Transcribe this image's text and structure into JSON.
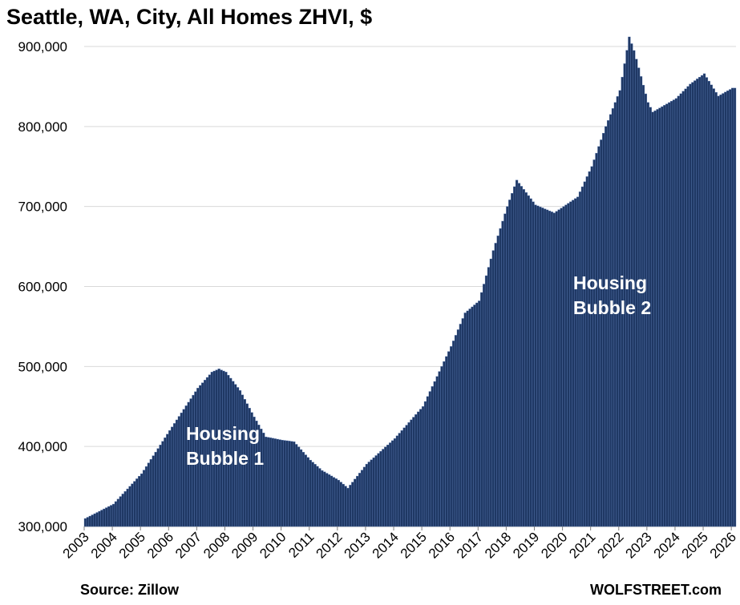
{
  "chart_data": {
    "type": "bar",
    "title": "Seattle, WA,  City, All Homes ZHVI, $",
    "xlabel": "",
    "ylabel": "",
    "ylim": [
      300000,
      915000
    ],
    "yticks": [
      300000,
      400000,
      500000,
      600000,
      700000,
      800000,
      900000
    ],
    "ytick_labels": [
      "300,000",
      "400,000",
      "500,000",
      "600,000",
      "700,000",
      "800,000",
      "900,000"
    ],
    "xticks": [
      "2003",
      "2004",
      "2005",
      "2006",
      "2007",
      "2008",
      "2009",
      "2010",
      "2011",
      "2012",
      "2013",
      "2014",
      "2015",
      "2016",
      "2017",
      "2018",
      "2019",
      "2020",
      "2021",
      "2022",
      "2023",
      "2024",
      "2025",
      "2026"
    ],
    "x_start": "2003-01",
    "frequency": "monthly",
    "grid": true,
    "bar_color": "#1f3864",
    "annotations": [
      {
        "text_lines": [
          "Housing",
          "Bubble 1"
        ]
      },
      {
        "text_lines": [
          "Housing",
          "Bubble 2"
        ]
      }
    ],
    "source": "Source: Zillow",
    "watermark": "WOLFSTREET.com",
    "anchors": [
      [
        "2003-01",
        310000
      ],
      [
        "2004-01",
        328000
      ],
      [
        "2005-01",
        366000
      ],
      [
        "2006-01",
        420000
      ],
      [
        "2007-01",
        473000
      ],
      [
        "2007-07",
        493000
      ],
      [
        "2007-10",
        497000
      ],
      [
        "2008-01",
        493000
      ],
      [
        "2008-07",
        470000
      ],
      [
        "2009-01",
        437000
      ],
      [
        "2009-06",
        412000
      ],
      [
        "2010-01",
        408000
      ],
      [
        "2010-06",
        406000
      ],
      [
        "2011-01",
        383000
      ],
      [
        "2011-06",
        370000
      ],
      [
        "2012-01",
        358000
      ],
      [
        "2012-05",
        348000
      ],
      [
        "2013-01",
        378000
      ],
      [
        "2014-01",
        410000
      ],
      [
        "2015-01",
        450000
      ],
      [
        "2016-01",
        525000
      ],
      [
        "2016-07",
        567000
      ],
      [
        "2017-01",
        582000
      ],
      [
        "2017-07",
        645000
      ],
      [
        "2018-01",
        700000
      ],
      [
        "2018-05",
        733000
      ],
      [
        "2019-01",
        702000
      ],
      [
        "2019-09",
        692000
      ],
      [
        "2020-07",
        712000
      ],
      [
        "2021-01",
        750000
      ],
      [
        "2021-07",
        800000
      ],
      [
        "2022-01",
        845000
      ],
      [
        "2022-05",
        912000
      ],
      [
        "2022-07",
        895000
      ],
      [
        "2023-01",
        830000
      ],
      [
        "2023-03",
        818000
      ],
      [
        "2024-01",
        835000
      ],
      [
        "2024-07",
        853000
      ],
      [
        "2025-01",
        866000
      ],
      [
        "2025-07",
        838000
      ],
      [
        "2026-01",
        848000
      ],
      [
        "2026-02",
        848000
      ]
    ]
  }
}
